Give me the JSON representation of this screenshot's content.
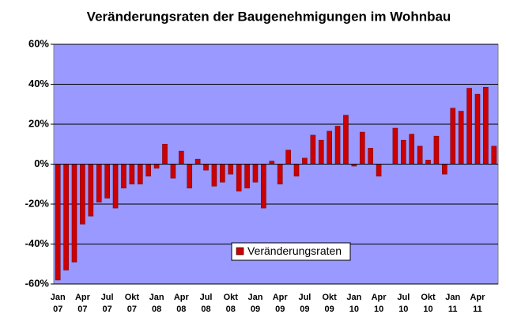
{
  "chart_data": {
    "type": "bar",
    "title": "Veränderungsraten der Baugenehmigungen im Wohnbau",
    "categories": [
      "Jan 07",
      null,
      null,
      "Apr 07",
      null,
      null,
      "Jul 07",
      null,
      null,
      "Okt 07",
      null,
      null,
      "Jan 08",
      null,
      null,
      "Apr 08",
      null,
      null,
      "Jul 08",
      null,
      null,
      "Okt 08",
      null,
      null,
      "Jan 09",
      null,
      null,
      "Apr 09",
      null,
      null,
      "Jul 09",
      null,
      null,
      "Okt 09",
      null,
      null,
      "Jan 10",
      null,
      null,
      "Apr 10",
      null,
      null,
      "Jul 10",
      null,
      null,
      "Okt 10",
      null,
      null,
      "Jan 11",
      null,
      null,
      "Apr 11",
      null,
      null
    ],
    "series": [
      {
        "name": "Veränderungsraten",
        "color": "#cc0000",
        "values": [
          -58,
          -53,
          -49,
          -30,
          -26,
          -19,
          -17,
          -22,
          -12,
          -10,
          -10,
          -6,
          -2,
          10,
          -7,
          6.5,
          -12,
          2.5,
          -3,
          -11,
          -9,
          -5,
          -13.5,
          -12,
          -9,
          -22,
          1.5,
          -10,
          7,
          -6,
          3,
          14.5,
          12,
          16.5,
          19,
          24.5,
          -1,
          16,
          8,
          -6,
          0,
          18,
          12,
          15,
          9,
          2,
          14,
          -5,
          28,
          26.5,
          38,
          35,
          38.5,
          9
        ]
      }
    ],
    "ylim": [
      -60,
      60
    ],
    "yticks": [
      {
        "value": -60,
        "label": "-60%"
      },
      {
        "value": -40,
        "label": "-40%"
      },
      {
        "value": -20,
        "label": "-20%"
      },
      {
        "value": 0,
        "label": "0%"
      },
      {
        "value": 20,
        "label": "20%"
      },
      {
        "value": 40,
        "label": "40%"
      },
      {
        "value": 60,
        "label": "60%"
      }
    ],
    "grid": true,
    "plot_background": "#9999ff"
  }
}
